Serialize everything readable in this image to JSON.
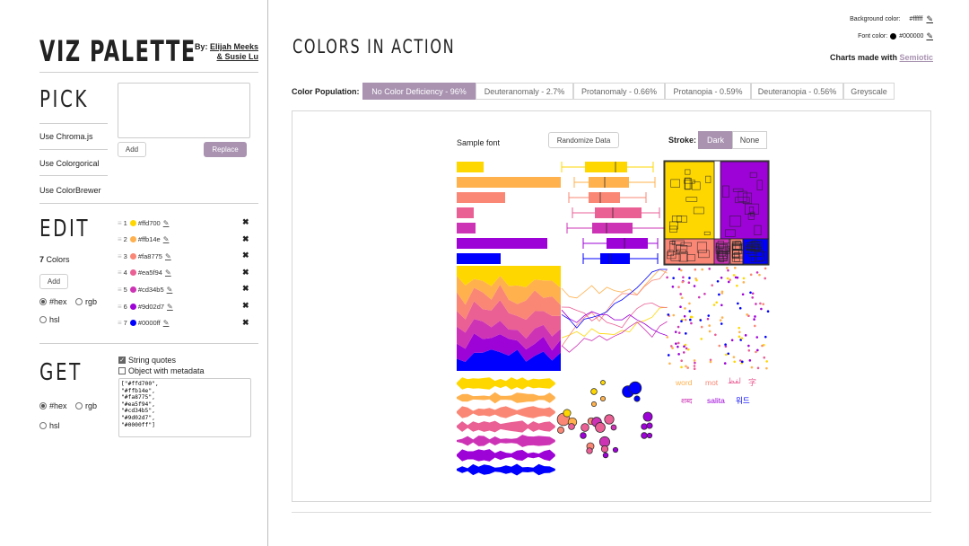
{
  "app": {
    "title": "VIZ PALETTE",
    "by": "By:",
    "author1": "Elijah Meeks",
    "author2": "& Susie Lu"
  },
  "pick": {
    "heading": "PICK",
    "links": [
      "Use Chroma.js",
      "Use Colorgorical",
      "Use ColorBrewer"
    ],
    "add_label": "Add",
    "replace_label": "Replace"
  },
  "edit": {
    "heading": "EDIT",
    "count": "7",
    "count_label": "Colors",
    "add_label": "Add",
    "format_hex": "#hex",
    "format_rgb": "rgb",
    "format_hsl": "hsl",
    "colors": [
      {
        "num": "1",
        "hex": "#ffd700"
      },
      {
        "num": "2",
        "hex": "#ffb14e"
      },
      {
        "num": "3",
        "hex": "#fa8775"
      },
      {
        "num": "4",
        "hex": "#ea5f94"
      },
      {
        "num": "5",
        "hex": "#cd34b5"
      },
      {
        "num": "6",
        "hex": "#9d02d7"
      },
      {
        "num": "7",
        "hex": "#0000ff"
      }
    ],
    "delete_glyph": "✖",
    "edit_glyph": "✎",
    "grip_glyph": "≡"
  },
  "get": {
    "heading": "GET",
    "string_quotes": "String quotes",
    "object_meta": "Object with metadata",
    "format_hex": "#hex",
    "format_rgb": "rgb",
    "format_hsl": "hsl",
    "output": "[\"#ffd700\",\n\"#ffb14e\",\n\"#fa8775\",\n\"#ea5f94\",\n\"#cd34b5\",\n\"#9d02d7\",\n\"#0000ff\"]"
  },
  "main": {
    "title": "COLORS IN ACTION",
    "bg_label": "Background color:",
    "bg_value": "#ffffff",
    "font_label": "Font color:",
    "font_value": "#000000",
    "charts_made_with": "Charts made with",
    "semiotic": "Semiotic",
    "population_label": "Color Population:",
    "tabs": [
      {
        "label": "No Color Deficiency - 96%",
        "active": true
      },
      {
        "label": "Deuteranomaly - 2.7%",
        "active": false
      },
      {
        "label": "Protanomaly - 0.66%",
        "active": false
      },
      {
        "label": "Protanopia - 0.59%",
        "active": false
      },
      {
        "label": "Deuteranopia - 0.56%",
        "active": false
      },
      {
        "label": "Greyscale",
        "active": false
      }
    ]
  },
  "panel": {
    "sample_font": "Sample font",
    "randomize": "Randomize Data",
    "stroke_label": "Stroke:",
    "stroke_dark": "Dark",
    "stroke_none": "None",
    "words": [
      "word",
      "mot",
      "لفظ",
      "字",
      "शब्द",
      "salita",
      "워드"
    ]
  },
  "chart_data": [
    {
      "type": "bar",
      "categories": [
        "1",
        "2",
        "3",
        "4",
        "5",
        "6",
        "7"
      ],
      "values": [
        30,
        116,
        54,
        19,
        21,
        101,
        49
      ]
    },
    {
      "type": "boxplot",
      "series": [
        {
          "color": "#ffd700",
          "min": 116,
          "q1": 142,
          "median": 176,
          "q3": 189,
          "max": 218
        },
        {
          "color": "#ffb14e",
          "min": 130,
          "q1": 146,
          "median": 164,
          "q3": 191,
          "max": 220
        },
        {
          "color": "#fa8775",
          "min": 124,
          "q1": 146,
          "median": 159,
          "q3": 181,
          "max": 210
        },
        {
          "color": "#ea5f94",
          "min": 128,
          "q1": 153,
          "median": 173,
          "q3": 205,
          "max": 225
        },
        {
          "color": "#cd34b5",
          "min": 122,
          "q1": 150,
          "median": 166,
          "q3": 195,
          "max": 233
        },
        {
          "color": "#9d02d7",
          "min": 140,
          "q1": 166,
          "median": 186,
          "q3": 212,
          "max": 223
        },
        {
          "color": "#0000ff",
          "min": 140,
          "q1": 159,
          "median": 170,
          "q3": 192,
          "max": 223
        }
      ]
    }
  ],
  "colors": {
    "accent": "#a993b1",
    "border": "#d0d0d0"
  }
}
